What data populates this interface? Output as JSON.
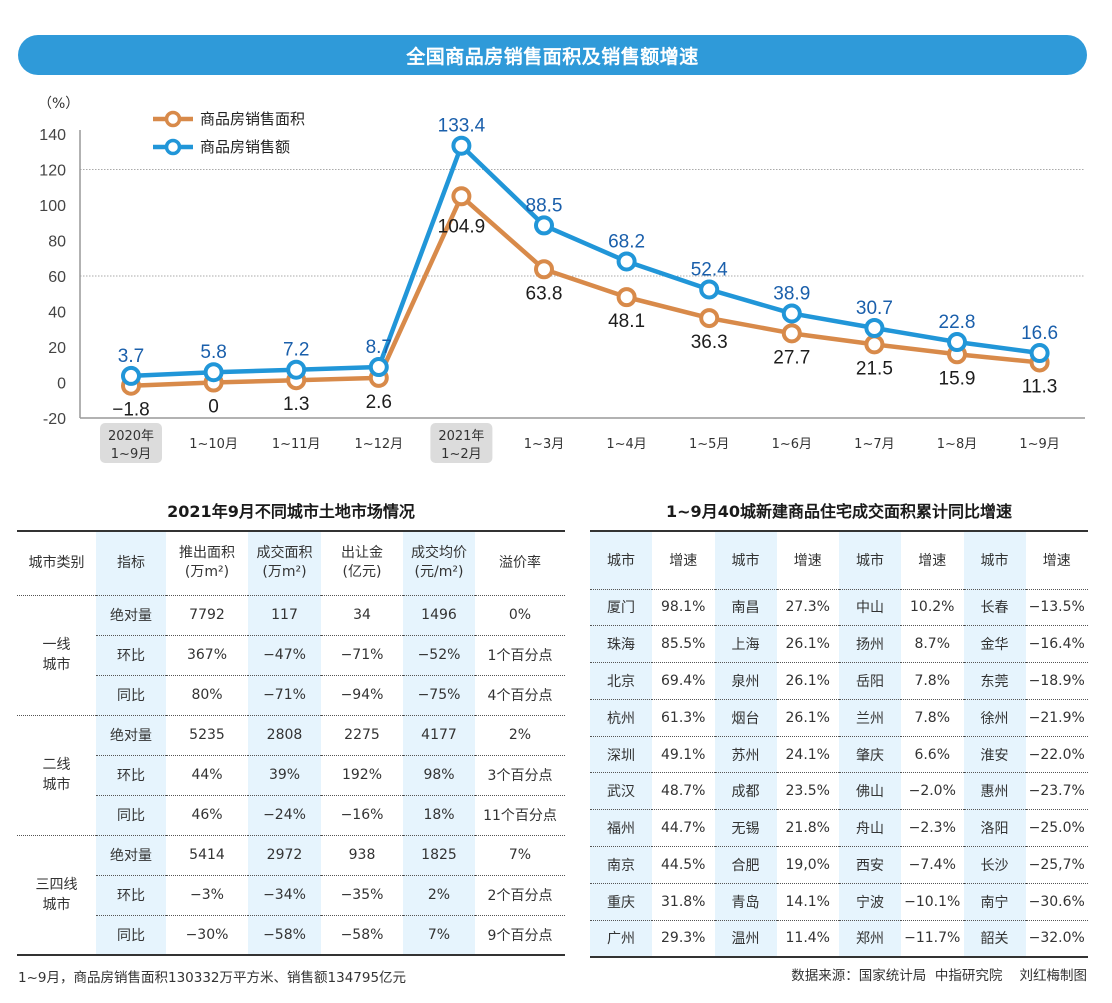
{
  "banner": {
    "title": "全国商品房销售面积及销售额增速"
  },
  "chart_data": {
    "type": "line",
    "title": "全国商品房销售面积及销售额增速",
    "ylabel": "（%）",
    "xlabel": "",
    "ylim": [
      -20,
      140
    ],
    "yticks": [
      -20,
      0,
      20,
      40,
      60,
      80,
      100,
      120,
      140
    ],
    "gridlines": [
      60,
      120
    ],
    "legend_position": "top-left",
    "categories": [
      {
        "line1": "2020年",
        "line2": "1~9月",
        "highlight": true
      },
      {
        "line1": "1~10月",
        "line2": "",
        "highlight": false
      },
      {
        "line1": "1~11月",
        "line2": "",
        "highlight": false
      },
      {
        "line1": "1~12月",
        "line2": "",
        "highlight": false
      },
      {
        "line1": "2021年",
        "line2": "1~2月",
        "highlight": true
      },
      {
        "line1": "1~3月",
        "line2": "",
        "highlight": false
      },
      {
        "line1": "1~4月",
        "line2": "",
        "highlight": false
      },
      {
        "line1": "1~5月",
        "line2": "",
        "highlight": false
      },
      {
        "line1": "1~6月",
        "line2": "",
        "highlight": false
      },
      {
        "line1": "1~7月",
        "line2": "",
        "highlight": false
      },
      {
        "line1": "1~8月",
        "line2": "",
        "highlight": false
      },
      {
        "line1": "1~9月",
        "line2": "",
        "highlight": false
      }
    ],
    "series": [
      {
        "name": "商品房销售面积",
        "color": "#d88a4a",
        "values": [
          -1.8,
          0,
          1.3,
          2.6,
          104.9,
          63.8,
          48.1,
          36.3,
          27.7,
          21.5,
          15.9,
          11.3
        ],
        "labels": [
          "−1.8",
          "0",
          "1.3",
          "2.6",
          "104.9",
          "63.8",
          "48.1",
          "36.3",
          "27.7",
          "21.5",
          "15.9",
          "11.3"
        ]
      },
      {
        "name": "商品房销售额",
        "color": "#2196d8",
        "values": [
          3.7,
          5.8,
          7.2,
          8.7,
          133.4,
          88.5,
          68.2,
          52.4,
          38.9,
          30.7,
          22.8,
          16.6
        ],
        "labels": [
          "3.7",
          "5.8",
          "7.2",
          "8.7",
          "133.4",
          "88.5",
          "68.2",
          "52.4",
          "38.9",
          "30.7",
          "22.8",
          "16.6"
        ]
      }
    ]
  },
  "land_table": {
    "title": "2021年9月不同城市土地市场情况",
    "headers": [
      {
        "l1": "城市类别",
        "l2": ""
      },
      {
        "l1": "指标",
        "l2": ""
      },
      {
        "l1": "推出面积",
        "l2": "(万m²)"
      },
      {
        "l1": "成交面积",
        "l2": "(万m²)"
      },
      {
        "l1": "出让金",
        "l2": "(亿元)"
      },
      {
        "l1": "成交均价",
        "l2": "(元/m²)"
      },
      {
        "l1": "溢价率",
        "l2": ""
      }
    ],
    "groups": [
      {
        "l1": "一线",
        "l2": "城市",
        "rows": [
          [
            "绝对量",
            "7792",
            "117",
            "34",
            "1496",
            "0%"
          ],
          [
            "环比",
            "367%",
            "−47%",
            "−71%",
            "−52%",
            "1个百分点"
          ],
          [
            "同比",
            "80%",
            "−71%",
            "−94%",
            "−75%",
            "4个百分点"
          ]
        ]
      },
      {
        "l1": "二线",
        "l2": "城市",
        "rows": [
          [
            "绝对量",
            "5235",
            "2808",
            "2275",
            "4177",
            "2%"
          ],
          [
            "环比",
            "44%",
            "39%",
            "192%",
            "98%",
            "3个百分点"
          ],
          [
            "同比",
            "46%",
            "−24%",
            "−16%",
            "18%",
            "11个百分点"
          ]
        ]
      },
      {
        "l1": "三四线",
        "l2": "城市",
        "rows": [
          [
            "绝对量",
            "5414",
            "2972",
            "938",
            "1825",
            "7%"
          ],
          [
            "环比",
            "−3%",
            "−34%",
            "−35%",
            "2%",
            "2个百分点"
          ],
          [
            "同比",
            "−30%",
            "−58%",
            "−58%",
            "7%",
            "9个百分点"
          ]
        ]
      }
    ],
    "footnote": "1~9月，商品房销售面积130332万平方米、销售额134795亿元"
  },
  "city_table": {
    "title": "1~9月40城新建商品住宅成交面积累计同比增速",
    "headers": [
      "城市",
      "增速",
      "城市",
      "增速",
      "城市",
      "增速",
      "城市",
      "增速"
    ],
    "rows": [
      [
        "厦门",
        "98.1%",
        "南昌",
        "27.3%",
        "中山",
        "10.2%",
        "长春",
        "−13.5%"
      ],
      [
        "珠海",
        "85.5%",
        "上海",
        "26.1%",
        "扬州",
        "8.7%",
        "金华",
        "−16.4%"
      ],
      [
        "北京",
        "69.4%",
        "泉州",
        "26.1%",
        "岳阳",
        "7.8%",
        "东莞",
        "−18.9%"
      ],
      [
        "杭州",
        "61.3%",
        "烟台",
        "26.1%",
        "兰州",
        "7.8%",
        "徐州",
        "−21.9%"
      ],
      [
        "深圳",
        "49.1%",
        "苏州",
        "24.1%",
        "肇庆",
        "6.6%",
        "淮安",
        "−22.0%"
      ],
      [
        "武汉",
        "48.7%",
        "成都",
        "23.5%",
        "佛山",
        "−2.0%",
        "惠州",
        "−23.7%"
      ],
      [
        "福州",
        "44.7%",
        "无锡",
        "21.8%",
        "舟山",
        "−2.3%",
        "洛阳",
        "−25.0%"
      ],
      [
        "南京",
        "44.5%",
        "合肥",
        "19,0%",
        "西安",
        "−7.4%",
        "长沙",
        "−25,7%"
      ],
      [
        "重庆",
        "31.8%",
        "青岛",
        "14.1%",
        "宁波",
        "−10.1%",
        "南宁",
        "−30.6%"
      ],
      [
        "广州",
        "29.3%",
        "温州",
        "11.4%",
        "郑州",
        "−11.7%",
        "韶关",
        "−32.0%"
      ]
    ],
    "source": "数据来源：国家统计局  中指研究院    刘红梅制图"
  }
}
